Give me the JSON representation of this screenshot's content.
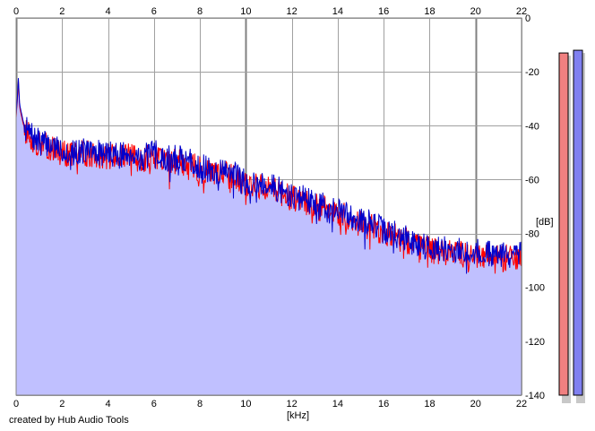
{
  "credit": "created by Hub Audio Tools",
  "colors": {
    "fill": "#c0c0ff",
    "line_blue": "#0000cc",
    "line_red": "#ff0000",
    "grid": "#a0a0a0",
    "grid_major": "#808080",
    "meter_left": "#f08080",
    "meter_right": "#8080f0"
  },
  "chart_data": {
    "type": "area",
    "xlabel": "[kHz]",
    "ylabel": "[dB]",
    "xlim": [
      0,
      22
    ],
    "ylim": [
      -140,
      0
    ],
    "x_ticks": [
      0,
      2,
      4,
      6,
      8,
      10,
      12,
      14,
      16,
      18,
      20,
      22
    ],
    "x_tick_labels": [
      "0",
      "2",
      "4",
      "6",
      "8",
      "10",
      "12",
      "14",
      "16",
      "18",
      "20",
      "22"
    ],
    "y_ticks": [
      0,
      -20,
      -40,
      -60,
      -80,
      -100,
      -120,
      -140
    ],
    "y_tick_labels": [
      "0",
      "-20",
      "-40",
      "-60",
      "-80",
      "-100",
      "-120",
      "-140"
    ],
    "grid": true,
    "series": [
      {
        "channel": "right",
        "color": "#0000cc",
        "x": [
          0.0,
          0.05,
          0.1,
          0.15,
          0.2,
          0.3,
          0.4,
          0.5,
          0.6,
          0.8,
          1.0,
          1.5,
          2.0,
          2.5,
          3.0,
          3.5,
          4.0,
          4.5,
          5.0,
          5.5,
          6.0,
          6.5,
          7.0,
          7.5,
          8.0,
          8.5,
          9.0,
          9.5,
          10.0,
          10.5,
          11.0,
          11.5,
          12.0,
          12.5,
          13.0,
          13.5,
          14.0,
          14.5,
          15.0,
          15.5,
          16.0,
          16.5,
          17.0,
          17.5,
          18.0,
          18.5,
          19.0,
          19.5,
          20.0,
          20.5,
          21.0,
          21.5,
          22.0
        ],
        "values": [
          -36,
          -30,
          -22,
          -32,
          -34,
          -38,
          -41,
          -42,
          -43,
          -45,
          -46,
          -47,
          -49,
          -50,
          -49,
          -50,
          -50,
          -51,
          -50,
          -52,
          -50,
          -52,
          -52,
          -53,
          -55,
          -57,
          -57,
          -58,
          -61,
          -61,
          -62,
          -64,
          -66,
          -67,
          -69,
          -70,
          -72,
          -73,
          -75,
          -76,
          -79,
          -80,
          -82,
          -84,
          -85,
          -86,
          -86,
          -87,
          -87,
          -87,
          -88,
          -88,
          -88
        ],
        "spectrum_seed": 7,
        "noise_db": 5
      },
      {
        "channel": "left",
        "color": "#ff0000",
        "x": [
          0.0,
          0.05,
          0.1,
          0.15,
          0.2,
          0.3,
          0.4,
          0.5,
          0.6,
          0.8,
          1.0,
          1.5,
          2.0,
          2.5,
          3.0,
          3.5,
          4.0,
          4.5,
          5.0,
          5.5,
          6.0,
          6.5,
          7.0,
          7.5,
          8.0,
          8.5,
          9.0,
          9.5,
          10.0,
          10.5,
          11.0,
          11.5,
          12.0,
          12.5,
          13.0,
          13.5,
          14.0,
          14.5,
          15.0,
          15.5,
          16.0,
          16.5,
          17.0,
          17.5,
          18.0,
          18.5,
          19.0,
          19.5,
          20.0,
          20.5,
          21.0,
          21.5,
          22.0
        ],
        "values": [
          -37,
          -31,
          -23,
          -33,
          -35,
          -39,
          -42,
          -43,
          -44,
          -46,
          -47,
          -48,
          -50,
          -51,
          -50,
          -51,
          -51,
          -52,
          -51,
          -53,
          -51,
          -53,
          -53,
          -54,
          -56,
          -58,
          -58,
          -59,
          -62,
          -62,
          -63,
          -65,
          -67,
          -68,
          -70,
          -71,
          -73,
          -74,
          -76,
          -77,
          -80,
          -81,
          -83,
          -85,
          -86,
          -87,
          -87,
          -88,
          -88,
          -88,
          -89,
          -89,
          -89
        ],
        "spectrum_seed": 13,
        "noise_db": 5
      }
    ],
    "level_meters": [
      {
        "channel": "left",
        "color": "#f08080",
        "db": -13
      },
      {
        "channel": "right",
        "color": "#8080f0",
        "db": -12
      }
    ]
  }
}
